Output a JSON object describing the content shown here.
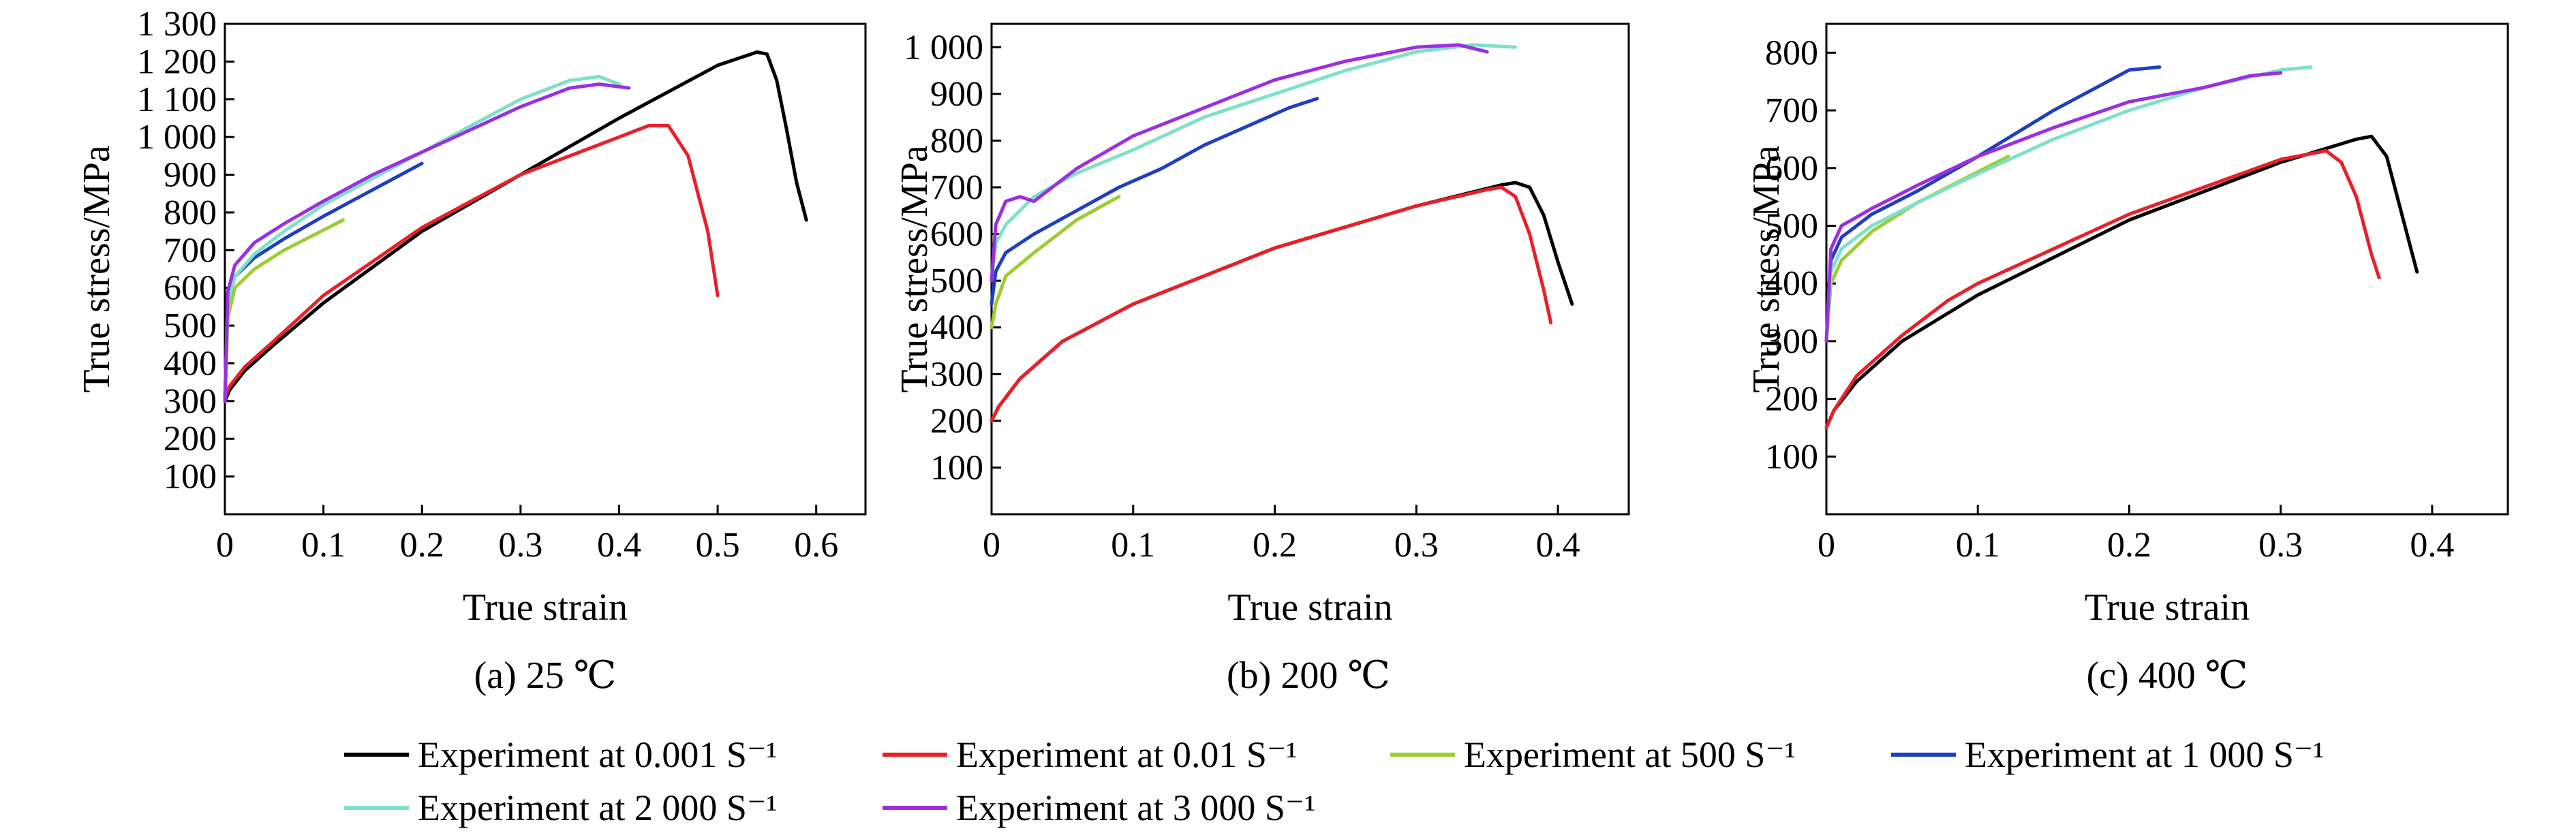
{
  "chart_data": [
    {
      "type": "line",
      "caption": "(a) 25 ℃",
      "xlabel": "True strain",
      "ylabel": "True stress/MPa",
      "xlim": [
        0,
        0.65
      ],
      "ylim": [
        0,
        1300
      ],
      "xticks": [
        "0",
        "0.1",
        "0.2",
        "0.3",
        "0.4",
        "0.5",
        "0.6"
      ],
      "yticks": [
        "100",
        "200",
        "300",
        "400",
        "500",
        "600",
        "700",
        "800",
        "900",
        "1 000",
        "1 100",
        "1 200",
        "1 300"
      ],
      "series": [
        {
          "ref": 0,
          "x": [
            0,
            0.005,
            0.02,
            0.05,
            0.1,
            0.2,
            0.3,
            0.4,
            0.5,
            0.54,
            0.55,
            0.56,
            0.57,
            0.58,
            0.59
          ],
          "y": [
            300,
            330,
            380,
            450,
            560,
            750,
            900,
            1050,
            1190,
            1225,
            1220,
            1150,
            1020,
            880,
            780
          ]
        },
        {
          "ref": 1,
          "x": [
            0,
            0.005,
            0.02,
            0.05,
            0.1,
            0.2,
            0.3,
            0.4,
            0.43,
            0.45,
            0.47,
            0.49,
            0.5
          ],
          "y": [
            310,
            340,
            390,
            460,
            580,
            760,
            900,
            1000,
            1030,
            1030,
            950,
            750,
            580
          ]
        },
        {
          "ref": 2,
          "x": [
            0,
            0.003,
            0.01,
            0.03,
            0.06,
            0.09,
            0.12
          ],
          "y": [
            300,
            520,
            600,
            650,
            700,
            740,
            780
          ]
        },
        {
          "ref": 3,
          "x": [
            0,
            0.003,
            0.01,
            0.03,
            0.06,
            0.1,
            0.15,
            0.2
          ],
          "y": [
            300,
            560,
            630,
            680,
            730,
            790,
            860,
            930
          ]
        },
        {
          "ref": 4,
          "x": [
            0,
            0.003,
            0.01,
            0.03,
            0.06,
            0.1,
            0.15,
            0.2,
            0.25,
            0.3,
            0.35,
            0.38,
            0.4
          ],
          "y": [
            300,
            560,
            630,
            690,
            750,
            820,
            890,
            960,
            1030,
            1100,
            1150,
            1160,
            1140
          ]
        },
        {
          "ref": 5,
          "x": [
            0,
            0.003,
            0.01,
            0.03,
            0.06,
            0.1,
            0.15,
            0.2,
            0.25,
            0.3,
            0.35,
            0.38,
            0.41
          ],
          "y": [
            300,
            590,
            660,
            720,
            770,
            830,
            900,
            960,
            1020,
            1080,
            1130,
            1140,
            1130
          ]
        }
      ]
    },
    {
      "type": "line",
      "caption": "(b) 200 ℃",
      "xlabel": "True strain",
      "ylabel": "True stress/MPa",
      "xlim": [
        0,
        0.45
      ],
      "ylim": [
        0,
        1050
      ],
      "xticks": [
        "0",
        "0.1",
        "0.2",
        "0.3",
        "0.4"
      ],
      "yticks": [
        "100",
        "200",
        "300",
        "400",
        "500",
        "600",
        "700",
        "800",
        "900",
        "1 000"
      ],
      "series": [
        {
          "ref": 0,
          "x": [
            0,
            0.005,
            0.02,
            0.05,
            0.1,
            0.2,
            0.3,
            0.36,
            0.37,
            0.38,
            0.39,
            0.4,
            0.41
          ],
          "y": [
            200,
            230,
            290,
            370,
            450,
            570,
            660,
            705,
            710,
            700,
            640,
            540,
            450
          ]
        },
        {
          "ref": 1,
          "x": [
            0,
            0.005,
            0.02,
            0.05,
            0.1,
            0.2,
            0.3,
            0.35,
            0.36,
            0.37,
            0.38,
            0.39,
            0.395
          ],
          "y": [
            200,
            230,
            290,
            370,
            450,
            570,
            660,
            695,
            700,
            680,
            600,
            480,
            410
          ]
        },
        {
          "ref": 2,
          "x": [
            0,
            0.003,
            0.01,
            0.03,
            0.06,
            0.09
          ],
          "y": [
            400,
            450,
            510,
            560,
            630,
            680
          ]
        },
        {
          "ref": 3,
          "x": [
            0,
            0.003,
            0.01,
            0.03,
            0.06,
            0.09,
            0.12,
            0.15,
            0.18,
            0.21,
            0.23
          ],
          "y": [
            450,
            520,
            560,
            600,
            650,
            700,
            740,
            790,
            830,
            870,
            890
          ]
        },
        {
          "ref": 4,
          "x": [
            0,
            0.003,
            0.01,
            0.03,
            0.06,
            0.1,
            0.15,
            0.2,
            0.25,
            0.3,
            0.34,
            0.37
          ],
          "y": [
            500,
            580,
            620,
            680,
            730,
            780,
            850,
            900,
            950,
            990,
            1005,
            1000
          ]
        },
        {
          "ref": 5,
          "x": [
            0,
            0.003,
            0.01,
            0.02,
            0.03,
            0.06,
            0.1,
            0.15,
            0.2,
            0.25,
            0.3,
            0.33,
            0.35
          ],
          "y": [
            500,
            620,
            670,
            680,
            670,
            740,
            810,
            870,
            930,
            970,
            1000,
            1005,
            990
          ]
        }
      ]
    },
    {
      "type": "line",
      "caption": "(c) 400 ℃",
      "xlabel": "True strain",
      "ylabel": "True stress/MPa",
      "xlim": [
        0,
        0.45
      ],
      "ylim": [
        0,
        850
      ],
      "xticks": [
        "0",
        "0.1",
        "0.2",
        "0.3",
        "0.4"
      ],
      "yticks": [
        "100",
        "200",
        "300",
        "400",
        "500",
        "600",
        "700",
        "800"
      ],
      "series": [
        {
          "ref": 0,
          "x": [
            0,
            0.005,
            0.02,
            0.05,
            0.1,
            0.2,
            0.3,
            0.35,
            0.36,
            0.37,
            0.38,
            0.39
          ],
          "y": [
            150,
            180,
            230,
            300,
            380,
            510,
            610,
            650,
            655,
            620,
            520,
            420
          ]
        },
        {
          "ref": 1,
          "x": [
            0,
            0.005,
            0.02,
            0.05,
            0.08,
            0.1,
            0.2,
            0.3,
            0.33,
            0.34,
            0.35,
            0.36,
            0.365
          ],
          "y": [
            150,
            180,
            240,
            310,
            370,
            400,
            520,
            615,
            630,
            610,
            550,
            450,
            410
          ]
        },
        {
          "ref": 2,
          "x": [
            0,
            0.003,
            0.01,
            0.03,
            0.06,
            0.09,
            0.12
          ],
          "y": [
            300,
            400,
            440,
            490,
            540,
            580,
            620
          ]
        },
        {
          "ref": 3,
          "x": [
            0,
            0.003,
            0.01,
            0.03,
            0.06,
            0.1,
            0.15,
            0.2,
            0.22
          ],
          "y": [
            300,
            440,
            480,
            520,
            560,
            620,
            700,
            770,
            775
          ]
        },
        {
          "ref": 4,
          "x": [
            0,
            0.003,
            0.01,
            0.03,
            0.06,
            0.1,
            0.15,
            0.2,
            0.25,
            0.3,
            0.32
          ],
          "y": [
            300,
            420,
            460,
            500,
            540,
            590,
            650,
            700,
            740,
            770,
            775
          ]
        },
        {
          "ref": 5,
          "x": [
            0,
            0.003,
            0.01,
            0.03,
            0.06,
            0.1,
            0.15,
            0.2,
            0.25,
            0.28,
            0.3
          ],
          "y": [
            300,
            460,
            500,
            530,
            570,
            620,
            670,
            715,
            740,
            760,
            765
          ]
        }
      ]
    }
  ],
  "legend": {
    "entries": [
      {
        "label": "Experiment at 0.001 S⁻¹",
        "color": "#000000"
      },
      {
        "label": "Experiment at 0.01 S⁻¹",
        "color": "#e8202a"
      },
      {
        "label": "Experiment at 500 S⁻¹",
        "color": "#9acd32"
      },
      {
        "label": "Experiment at 1 000 S⁻¹",
        "color": "#1f3fbf"
      },
      {
        "label": "Experiment at 2 000 S⁻¹",
        "color": "#7fe0c8"
      },
      {
        "label": "Experiment at 3 000 S⁻¹",
        "color": "#9b30e0"
      }
    ]
  }
}
